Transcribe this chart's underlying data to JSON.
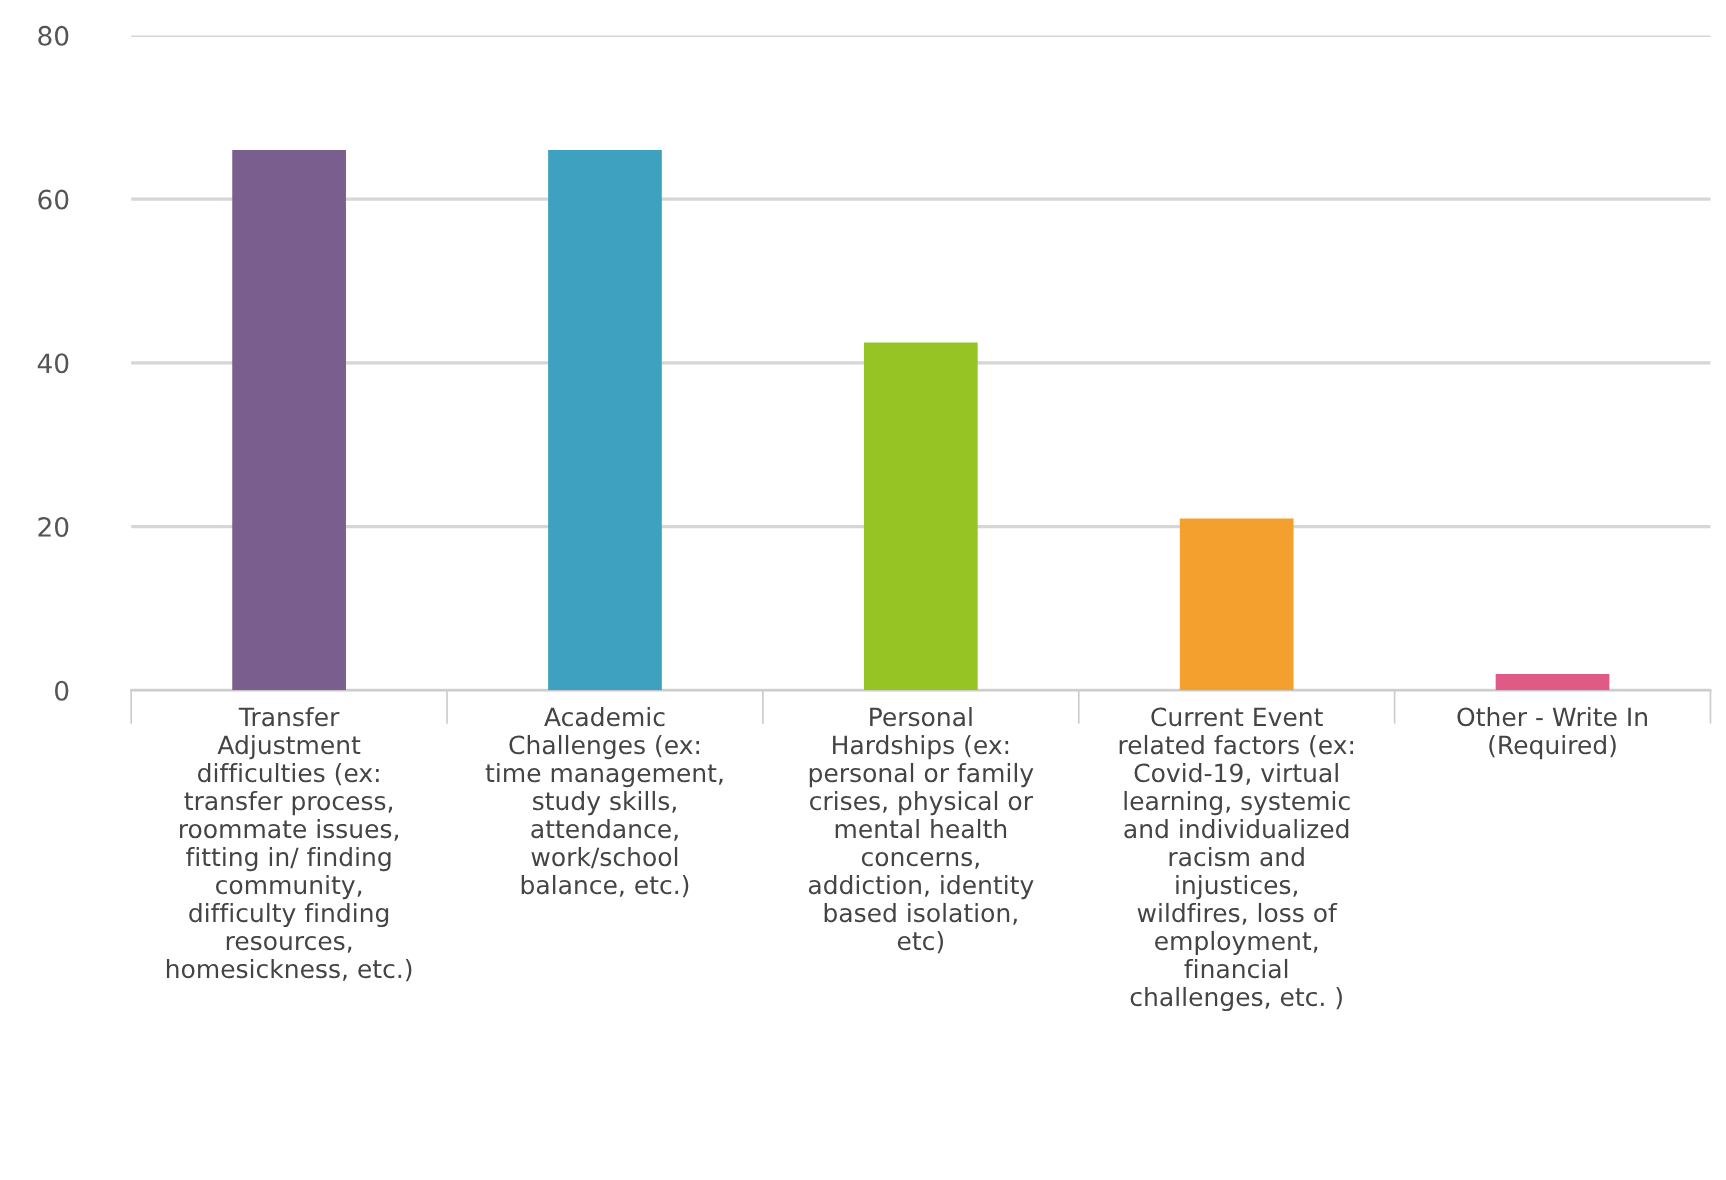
{
  "chart_data": {
    "type": "bar",
    "categories": [
      "Transfer\nAdjustment\ndifficulties (ex:\ntransfer process,\nroommate issues,\nfitting in/ finding\ncommunity,\ndifficulty finding\nresources,\nhomesickness, etc.)",
      "Academic\nChallenges (ex:\ntime management,\nstudy skills,\nattendance,\nwork/school\nbalance, etc.)",
      "Personal\nHardships (ex:\npersonal or family\ncrises, physical or\nmental health\nconcerns,\naddiction, identity\nbased isolation,\netc)",
      "Current Event\nrelated factors (ex:\nCovid-19, virtual\nlearning, systemic\nand individualized\nracism and\ninjustices,\nwildfires, loss of\nemployment,\nfinancial\nchallenges, etc. )",
      "Other - Write In\n(Required)"
    ],
    "values": [
      66,
      66,
      42.5,
      21,
      2
    ],
    "colors": [
      "#7a5e8e",
      "#3ea1c0",
      "#95c424",
      "#f3a02e",
      "#e05a86"
    ],
    "ylim": [
      0,
      80
    ],
    "yticks": [
      0,
      20,
      40,
      60,
      80
    ],
    "grid": "y",
    "legend": false
  }
}
